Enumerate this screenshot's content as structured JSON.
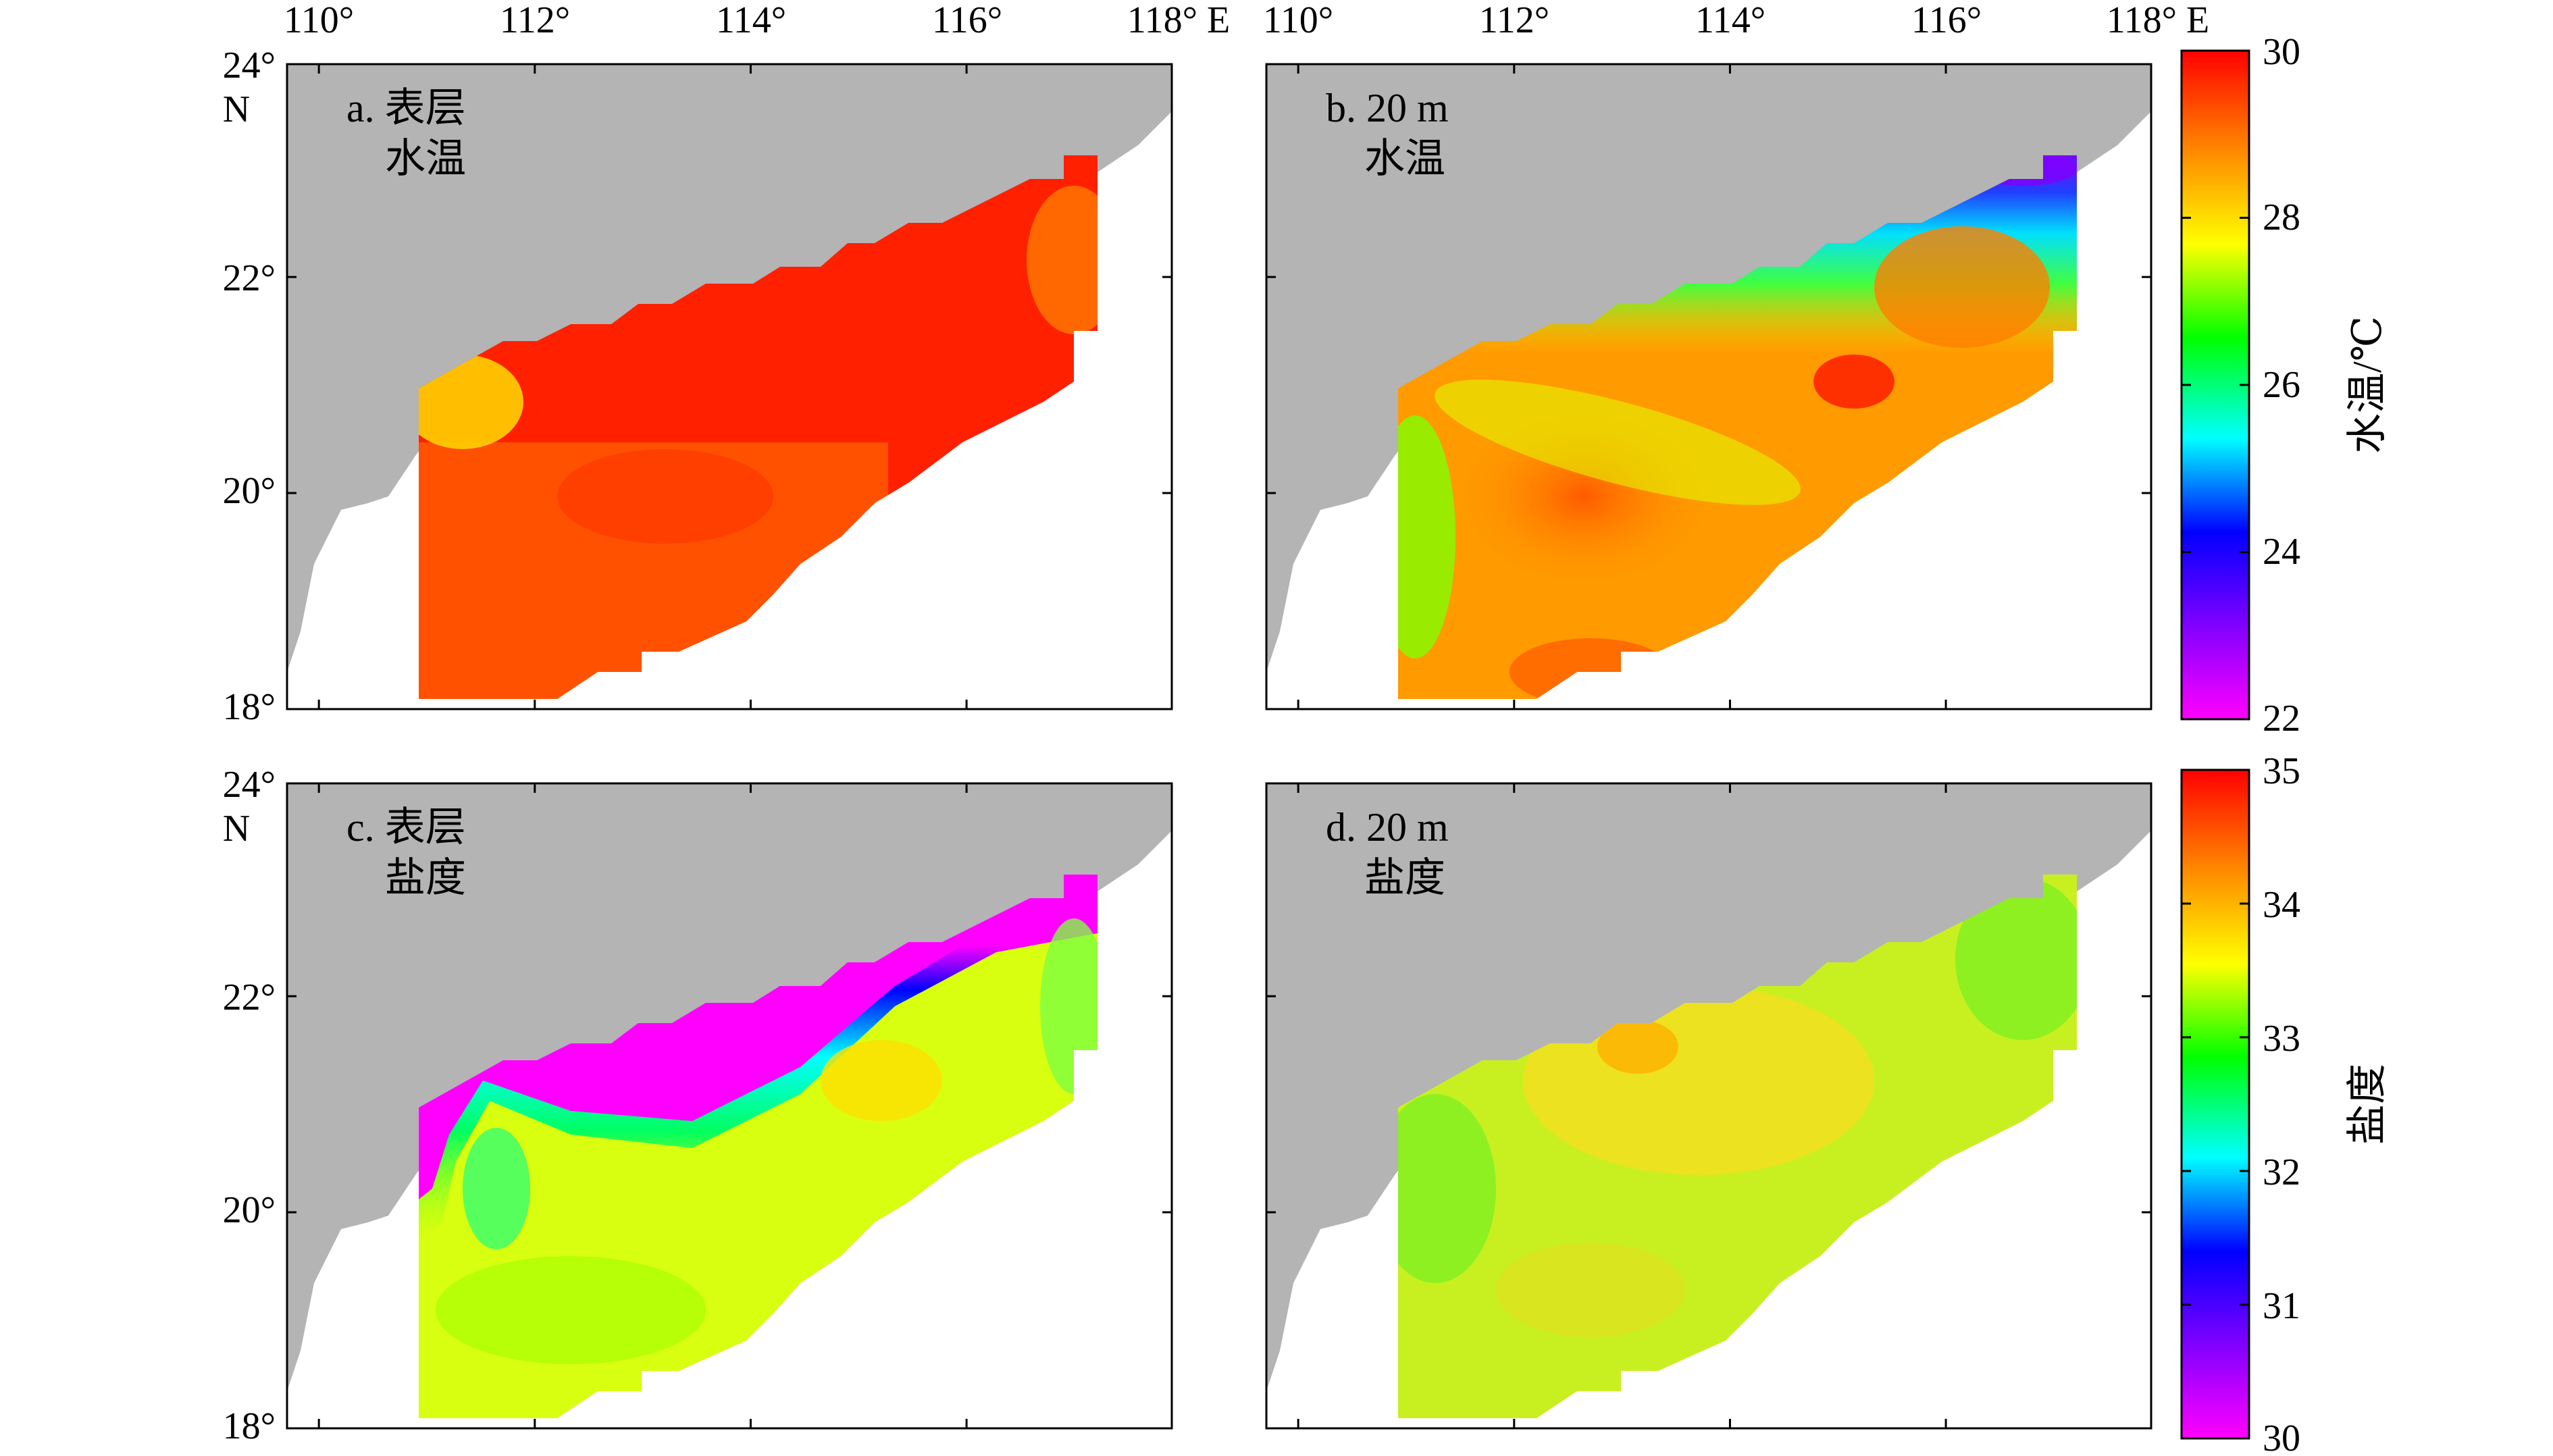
{
  "panels": [
    {
      "id": "a",
      "label_line1": "a. 表层",
      "label_line2": "水温",
      "field": "temperature",
      "colorbar": "temp"
    },
    {
      "id": "b",
      "label_line1": "b. 20 m",
      "label_line2": "水温",
      "field": "temperature",
      "colorbar": "temp"
    },
    {
      "id": "c",
      "label_line1": "c. 表层",
      "label_line2": "盐度",
      "field": "salinity",
      "colorbar": "sal"
    },
    {
      "id": "d",
      "label_line1": "d. 20 m",
      "label_line2": "盐度",
      "field": "salinity",
      "colorbar": "sal"
    }
  ],
  "axes": {
    "lon_ticks": [
      "110°",
      "112°",
      "114°",
      "116°",
      "118° E"
    ],
    "lat_ticks": [
      "24°",
      "22°",
      "20°",
      "18°"
    ],
    "lat_unit": "N",
    "lon_range": [
      110,
      118
    ],
    "lat_range": [
      18,
      24
    ]
  },
  "colorbars": {
    "temp": {
      "title": "水温/℃",
      "min": 22,
      "max": 30,
      "ticks": [
        "30",
        "28",
        "26",
        "24",
        "22"
      ]
    },
    "sal": {
      "title": "盐度",
      "min": 30,
      "max": 35,
      "ticks": [
        "35",
        "34",
        "33",
        "32",
        "31",
        "30"
      ]
    }
  },
  "colors": {
    "land": "#b4b4b4",
    "sea": "#ffffff",
    "colormap": [
      "#ff00ff",
      "#8000ff",
      "#0000ff",
      "#00ffff",
      "#00ff00",
      "#ffff00",
      "#ff8000",
      "#ff0000"
    ]
  }
}
